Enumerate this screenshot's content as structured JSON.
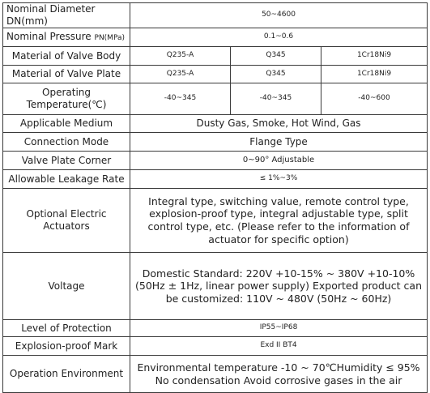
{
  "rows": [
    {
      "label": "Nominal Diameter DN(mm)",
      "value": "50~4600"
    },
    {
      "label_main": "Nominal Pressure ",
      "label_unit": "PN(MPa)",
      "value": "0.1~0.6"
    },
    {
      "label": "Material of Valve Body",
      "v1": "Q235-A",
      "v2": "Q345",
      "v3": "1Cr18Ni9"
    },
    {
      "label": "Material of Valve Plate",
      "v1": "Q235-A",
      "v2": "Q345",
      "v3": "1Cr18Ni9"
    },
    {
      "label_line1": "Operating",
      "label_line2": "Temperature(℃)",
      "v1": "-40~345",
      "v2": "-40~345",
      "v3": "-40~600"
    },
    {
      "label": "Applicable Medium",
      "value": "Dusty Gas, Smoke, Hot Wind, Gas"
    },
    {
      "label": "Connection Mode",
      "value": "Flange Type"
    },
    {
      "label": "Valve Plate Corner",
      "value": "0~90° Adjustable"
    },
    {
      "label": "Allowable Leakage Rate",
      "value": "≤ 1%~3%"
    },
    {
      "label_line1": "Optional Electric",
      "label_line2": "Actuators",
      "value": "Integral type, switching value, remote control type, explosion-proof type, integral adjustable type, split control type, etc. (Please refer to the information of actuator for specific option)"
    },
    {
      "label": "Voltage",
      "value": "Domestic Standard: 220V +10-15% ~ 380V +10-10% (50Hz ± 1Hz, linear power supply) Exported product can be customized: 110V ~ 480V (50Hz ~ 60Hz)"
    },
    {
      "label": "Level of Protection",
      "value": "IP55~IP68"
    },
    {
      "label": "Explosion-proof Mark",
      "value": "Exd II BT4"
    },
    {
      "label": "Operation Environment",
      "value": "Environmental temperature -10 ~ 70℃Humidity ≤ 95% No condensation Avoid corrosive gases in the air"
    }
  ]
}
